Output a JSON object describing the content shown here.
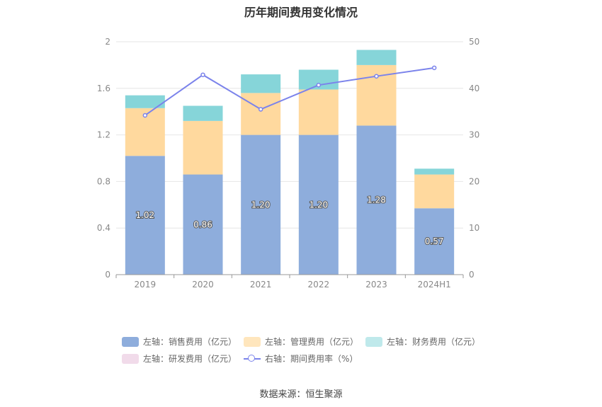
{
  "chart_data": {
    "type": "bar",
    "stacked": true,
    "title": "历年期间费用变化情况",
    "categories": [
      "2019",
      "2020",
      "2021",
      "2022",
      "2023",
      "2024H1"
    ],
    "y_left": {
      "min": 0,
      "max": 2,
      "ticks": [
        "0",
        "0.4",
        "0.8",
        "1.2",
        "1.6",
        "2"
      ]
    },
    "y_right": {
      "min": 0,
      "max": 50,
      "ticks": [
        "0",
        "10",
        "20",
        "30",
        "40",
        "50"
      ]
    },
    "grid": true,
    "legend_position": "bottom",
    "series": [
      {
        "name": "左轴：销售费用（亿元）",
        "axis": "left",
        "type": "bar",
        "color": "#8eaddc",
        "values": [
          1.02,
          0.86,
          1.2,
          1.2,
          1.28,
          0.57
        ],
        "labels": [
          "1.02",
          "0.86",
          "1.20",
          "1.20",
          "1.28",
          "0.57"
        ]
      },
      {
        "name": "左轴：管理费用（亿元）",
        "axis": "left",
        "type": "bar",
        "color": "#ffd99e",
        "values": [
          0.41,
          0.46,
          0.36,
          0.39,
          0.52,
          0.29
        ]
      },
      {
        "name": "左轴：财务费用（亿元）",
        "axis": "left",
        "type": "bar",
        "color": "#86d5d9",
        "values": [
          0.11,
          0.13,
          0.16,
          0.17,
          0.13,
          0.05
        ]
      },
      {
        "name": "左轴：研发费用（亿元）",
        "axis": "left",
        "type": "bar",
        "color": "#f1dbea",
        "values": [
          0,
          0,
          0,
          0,
          0,
          0
        ]
      },
      {
        "name": "右轴：期间费用率（%）",
        "axis": "right",
        "type": "line",
        "color": "#7b83eb",
        "values": [
          34.2,
          42.9,
          35.5,
          40.7,
          42.6,
          44.4
        ]
      }
    ],
    "source": "数据来源：恒生聚源"
  }
}
